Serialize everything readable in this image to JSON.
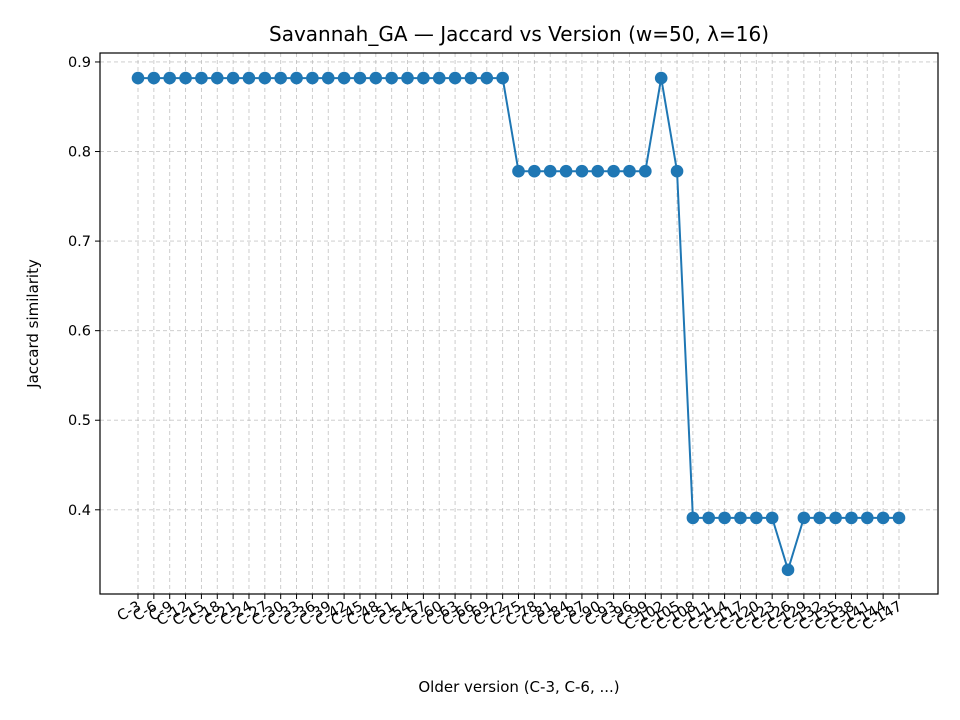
{
  "chart_data": {
    "type": "line",
    "title": "Savannah_GA — Jaccard vs Version (w=50, λ=16)",
    "xlabel": "Older version (C-3, C-6, ...)",
    "ylabel": "Jaccard similarity",
    "categories": [
      "C-3",
      "C-6",
      "C-9",
      "C-12",
      "C-15",
      "C-18",
      "C-21",
      "C-24",
      "C-27",
      "C-30",
      "C-33",
      "C-36",
      "C-39",
      "C-42",
      "C-45",
      "C-48",
      "C-51",
      "C-54",
      "C-57",
      "C-60",
      "C-63",
      "C-66",
      "C-69",
      "C-72",
      "C-75",
      "C-78",
      "C-81",
      "C-84",
      "C-87",
      "C-90",
      "C-93",
      "C-96",
      "C-99",
      "C-102",
      "C-105",
      "C-108",
      "C-111",
      "C-114",
      "C-117",
      "C-120",
      "C-123",
      "C-126",
      "C-129",
      "C-132",
      "C-135",
      "C-138",
      "C-141",
      "C-144",
      "C-147"
    ],
    "series": [
      {
        "values": [
          0.882,
          0.882,
          0.882,
          0.882,
          0.882,
          0.882,
          0.882,
          0.882,
          0.882,
          0.882,
          0.882,
          0.882,
          0.882,
          0.882,
          0.882,
          0.882,
          0.882,
          0.882,
          0.882,
          0.882,
          0.882,
          0.882,
          0.882,
          0.882,
          0.778,
          0.778,
          0.778,
          0.778,
          0.778,
          0.778,
          0.778,
          0.778,
          0.778,
          0.882,
          0.778,
          0.391,
          0.391,
          0.391,
          0.391,
          0.391,
          0.391,
          0.333,
          0.391,
          0.391,
          0.391,
          0.391,
          0.391,
          0.391,
          0.391
        ],
        "color": "#1f77b4"
      }
    ],
    "yticks": [
      0.4,
      0.5,
      0.6,
      0.7,
      0.8,
      0.9
    ],
    "ytick_labels": [
      "0.4",
      "0.5",
      "0.6",
      "0.7",
      "0.8",
      "0.9"
    ],
    "ylim": [
      0.306,
      0.91
    ],
    "grid": true,
    "marker": "circle"
  }
}
